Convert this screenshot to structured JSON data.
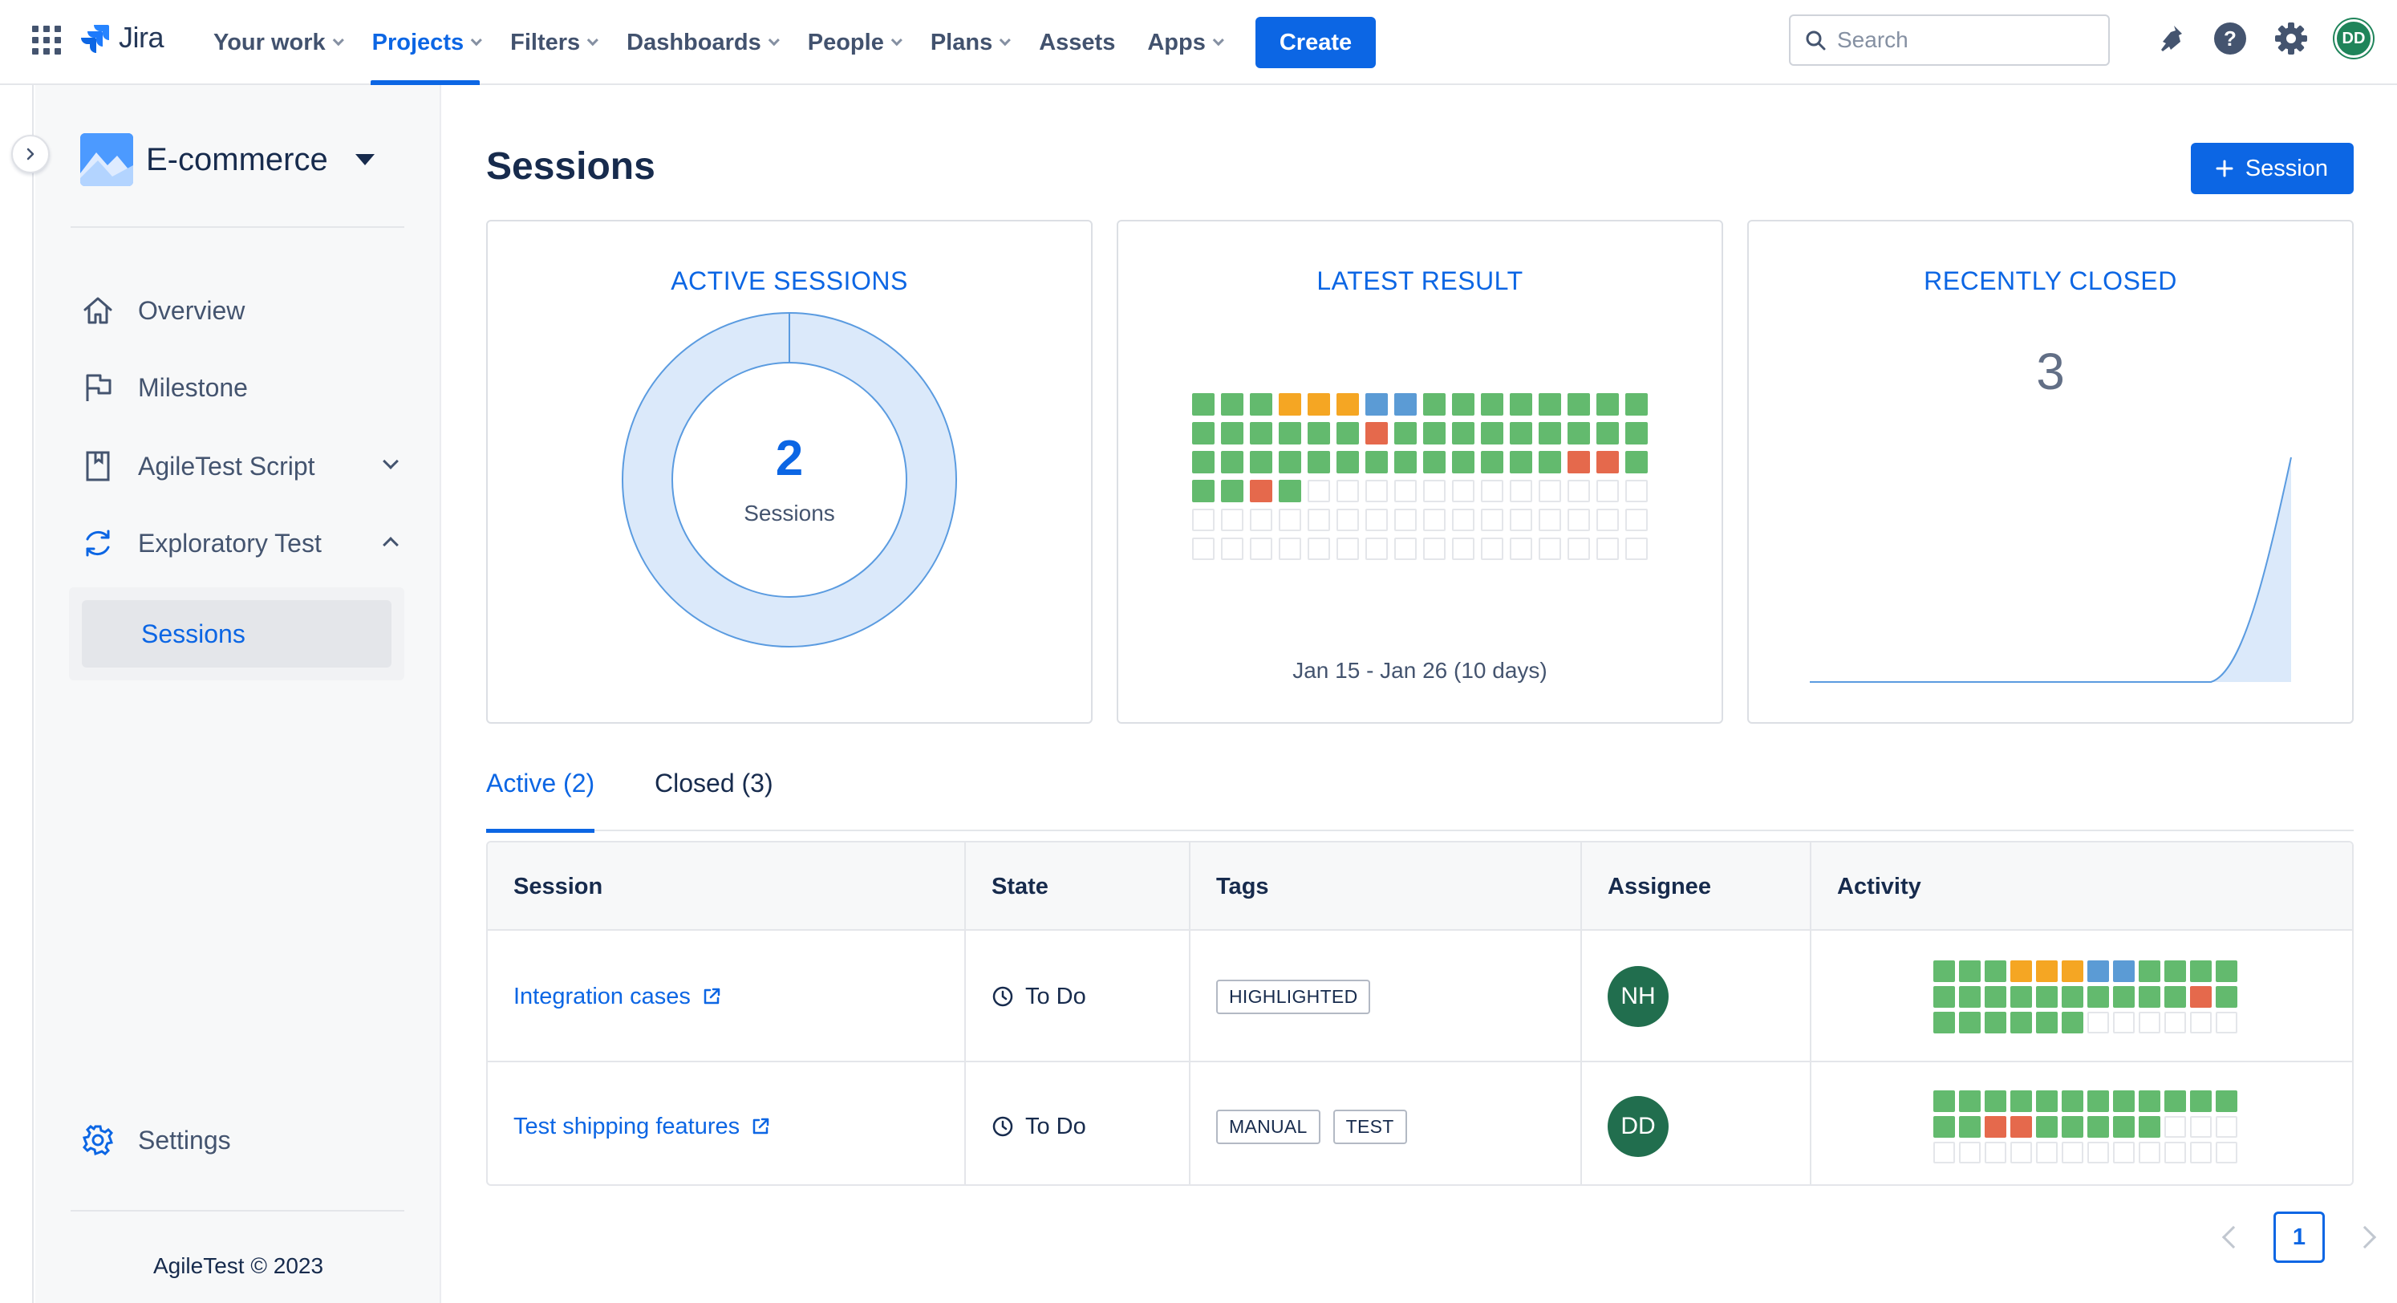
{
  "topnav": {
    "logo": "Jira",
    "items": [
      {
        "label": "Your work",
        "dropdown": true
      },
      {
        "label": "Projects",
        "dropdown": true,
        "active": true
      },
      {
        "label": "Filters",
        "dropdown": true
      },
      {
        "label": "Dashboards",
        "dropdown": true
      },
      {
        "label": "People",
        "dropdown": true
      },
      {
        "label": "Plans",
        "dropdown": true
      },
      {
        "label": "Assets",
        "dropdown": false
      },
      {
        "label": "Apps",
        "dropdown": true
      }
    ],
    "create_label": "Create",
    "search_placeholder": "Search",
    "avatar_initials": "DD",
    "icons": [
      "apps-grid-icon",
      "notifications-icon",
      "help-icon",
      "settings-icon"
    ]
  },
  "sidebar": {
    "project_name": "E-commerce",
    "items": [
      {
        "label": "Overview",
        "icon": "home-icon"
      },
      {
        "label": "Milestone",
        "icon": "flag-icon"
      },
      {
        "label": "AgileTest Script",
        "icon": "book-icon",
        "expand": "down"
      },
      {
        "label": "Exploratory Test",
        "icon": "refresh-icon",
        "expand": "up"
      }
    ],
    "sub_item": "Sessions",
    "settings_label": "Settings",
    "footer": "AgileTest © 2023"
  },
  "main": {
    "title": "Sessions",
    "new_session_label": "Session",
    "cards": {
      "active": {
        "title": "ACTIVE SESSIONS",
        "count": "2",
        "label": "Sessions"
      },
      "latest": {
        "title": "LATEST RESULT",
        "date_range": "Jan 15  -  Jan 26  (10 days)"
      },
      "closed": {
        "title": "RECENTLY CLOSED",
        "count": "3"
      }
    },
    "tabs": [
      {
        "label": "Active (2)",
        "active": true
      },
      {
        "label": "Closed (3)",
        "active": false
      }
    ],
    "table": {
      "columns": [
        "Session",
        "State",
        "Tags",
        "Assignee",
        "Activity"
      ],
      "rows": [
        {
          "session": "Integration cases",
          "state": "To Do",
          "tags": [
            "HIGHLIGHTED"
          ],
          "assignee": "NH"
        },
        {
          "session": "Test shipping features",
          "state": "To Do",
          "tags": [
            "MANUAL",
            "TEST"
          ],
          "assignee": "DD"
        }
      ]
    },
    "pagination": {
      "current": "1"
    }
  },
  "colors": {
    "pass": "#63ba6e",
    "warn": "#f5a623",
    "info": "#5b9bd5",
    "fail": "#e5694c",
    "accent": "#0c66e4"
  },
  "latest_result_grid": {
    "columns": 16,
    "total": 96,
    "cells": "GGGYYYBBGGGGGGGGGGGGGGRGGGGGGGGGGGGGGGGGGGGGGRRGGGRG"
  },
  "activity_grids": [
    {
      "columns": 12,
      "total": 36,
      "cells": "GGGYYYBBGGGGGGGGGGGGGGRGGGGGGG"
    },
    {
      "columns": 12,
      "total": 36,
      "cells": "GGGGGGGGGGGGGGRRGGGGG"
    }
  ]
}
